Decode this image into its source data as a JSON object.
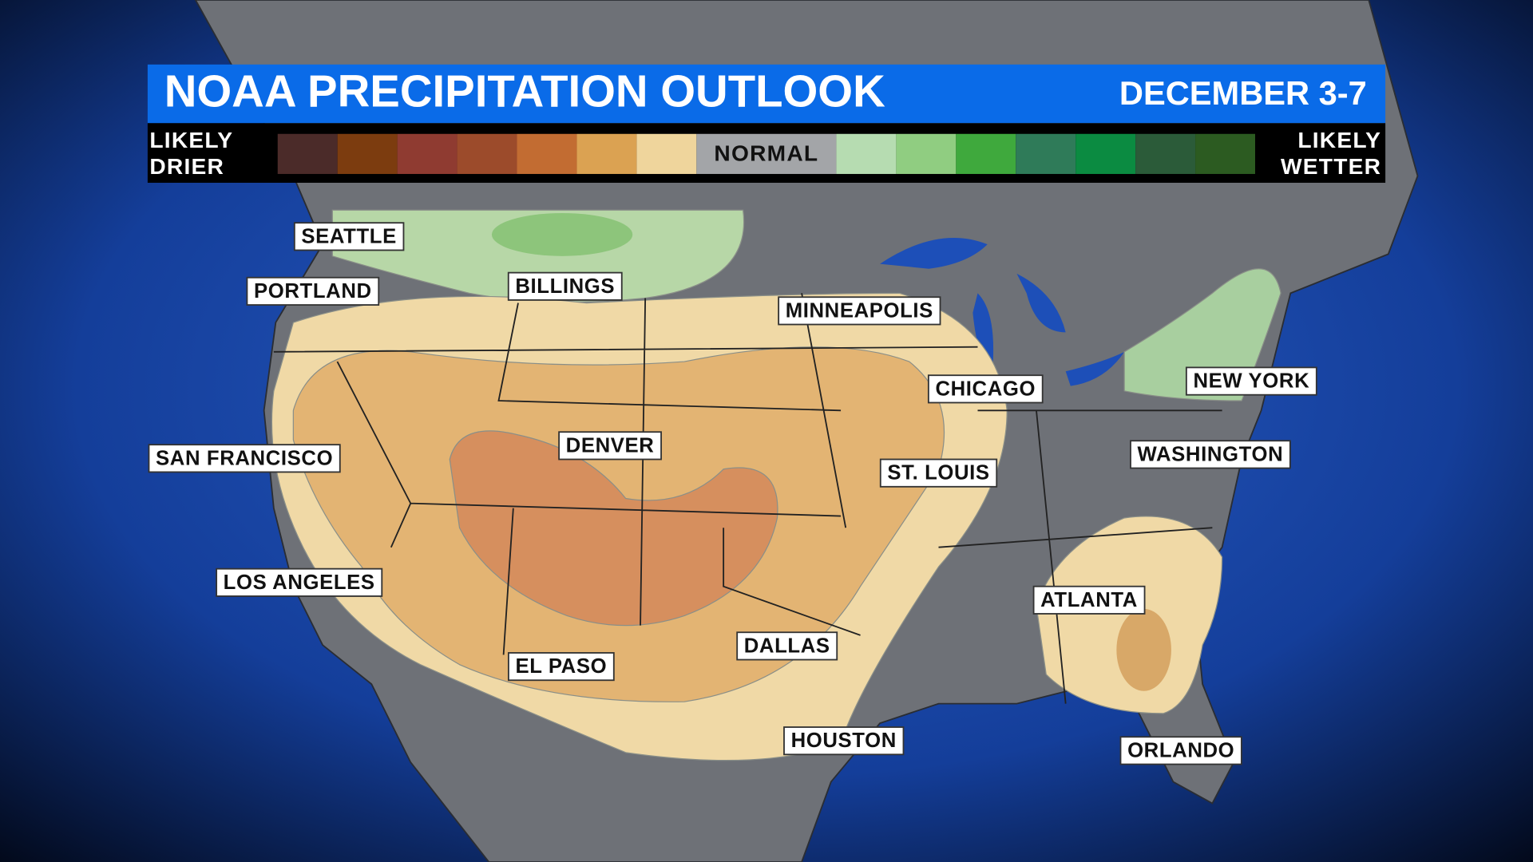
{
  "header": {
    "title": "NOAA PRECIPITATION OUTLOOK",
    "date": "DECEMBER 3-7"
  },
  "legend": {
    "left": [
      "LIKELY",
      "DRIER"
    ],
    "normal": "NORMAL",
    "right": [
      "LIKELY",
      "WETTER"
    ],
    "drier_colors": [
      "#4b2b29",
      "#7c3c0f",
      "#8f3b31",
      "#9c4b2b",
      "#c26c32",
      "#dba252",
      "#efd59c"
    ],
    "wetter_colors": [
      "#b6dcb1",
      "#90cd81",
      "#3fa93d",
      "#2f7b59",
      "#0b8b41",
      "#2b5b39",
      "#2c5b21"
    ]
  },
  "cities": [
    "SEATTLE",
    "PORTLAND",
    "BILLINGS",
    "MINNEAPOLIS",
    "CHICAGO",
    "NEW YORK",
    "SAN FRANCISCO",
    "DENVER",
    "ST. LOUIS",
    "WASHINGTON",
    "LOS ANGELES",
    "ATLANTA",
    "EL PASO",
    "DALLAS",
    "HOUSTON",
    "ORLANDO"
  ]
}
